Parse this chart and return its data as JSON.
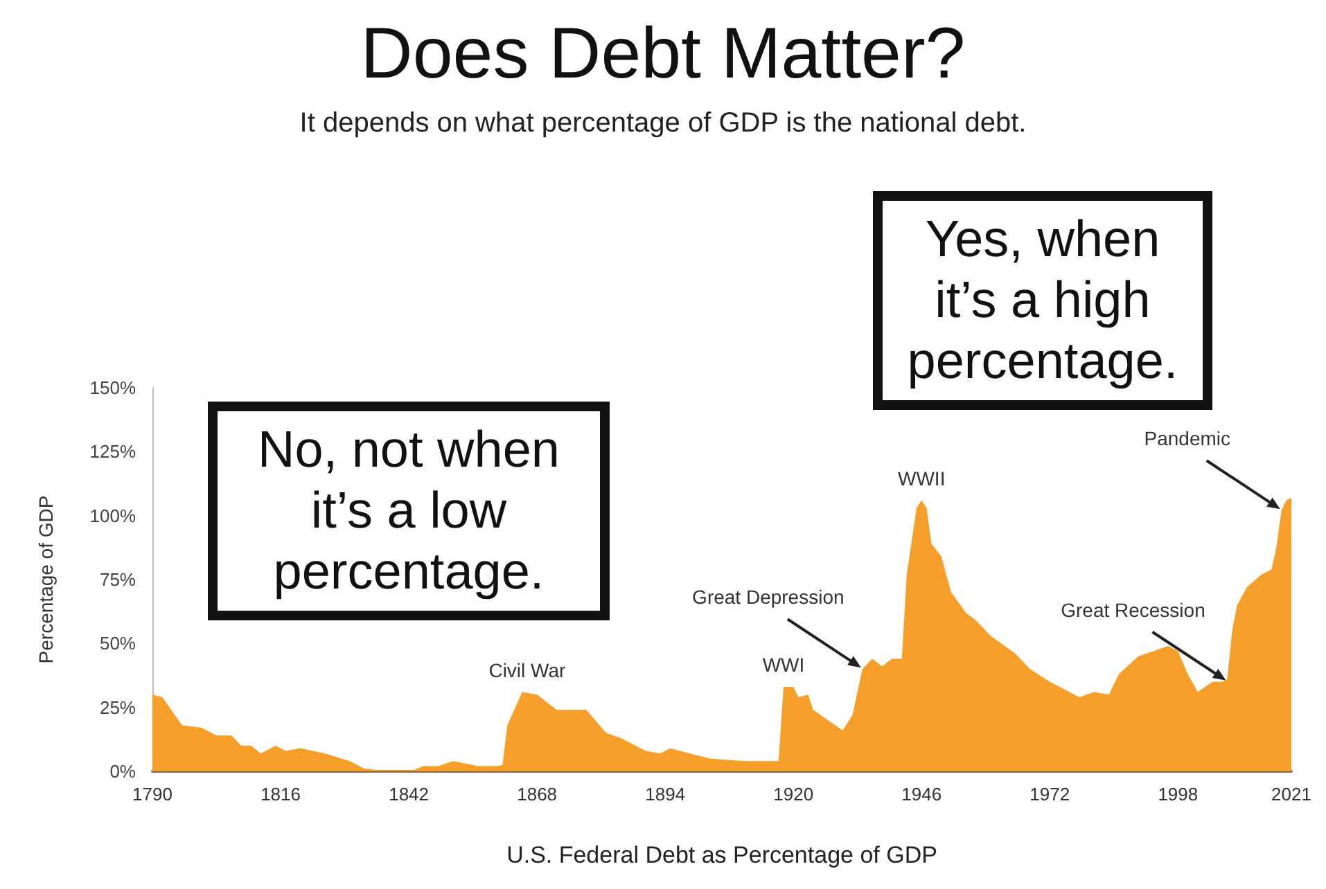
{
  "chart_data": {
    "type": "area",
    "title": "Does Debt Matter?",
    "subtitle": "It depends on what percentage of GDP is the national debt.",
    "xlabel": "U.S. Federal Debt as Percentage of GDP",
    "ylabel": "Percentage of GDP",
    "x": [
      1790,
      1792,
      1796,
      1800,
      1803,
      1806,
      1808,
      1810,
      1812,
      1815,
      1817,
      1820,
      1825,
      1830,
      1833,
      1836,
      1843,
      1845,
      1848,
      1851,
      1856,
      1860,
      1861,
      1862,
      1865,
      1868,
      1872,
      1878,
      1882,
      1885,
      1890,
      1893,
      1895,
      1899,
      1903,
      1910,
      1916,
      1917,
      1918,
      1920,
      1921,
      1923,
      1924,
      1930,
      1932,
      1934,
      1936,
      1938,
      1940,
      1942,
      1943,
      1945,
      1946,
      1947,
      1948,
      1950,
      1952,
      1955,
      1957,
      1960,
      1965,
      1968,
      1972,
      1975,
      1978,
      1981,
      1984,
      1986,
      1990,
      1993,
      1996,
      1998,
      2000,
      2002,
      2005,
      2007,
      2008,
      2009,
      2010,
      2012,
      2015,
      2016,
      2017,
      2018,
      2019,
      2020,
      2021
    ],
    "series": [
      {
        "color": "#f59e2a",
        "values": [
          30,
          29,
          18,
          17,
          14,
          14,
          10,
          10,
          7,
          10,
          8,
          9,
          7,
          4,
          1,
          0.5,
          0.5,
          2,
          2,
          4,
          2,
          2,
          2.5,
          18,
          31,
          30,
          24,
          24,
          15,
          13,
          8,
          7,
          9,
          7,
          5,
          4,
          4,
          4,
          33,
          33,
          29,
          30,
          24,
          16,
          22,
          40,
          44,
          41,
          44,
          44,
          77,
          103,
          106,
          103,
          89,
          84,
          70,
          62,
          59,
          53,
          46,
          40,
          35,
          32,
          29,
          31,
          30,
          38,
          45,
          47,
          49,
          47,
          38,
          31,
          35,
          35,
          36,
          55,
          65,
          72,
          77,
          78,
          79,
          88,
          102,
          106,
          107
        ]
      }
    ],
    "xlim": [
      1790,
      2021
    ],
    "xticks": [
      1790,
      1816,
      1842,
      1868,
      1894,
      1920,
      1946,
      1972,
      1998,
      2021
    ],
    "ylim": [
      0,
      150
    ],
    "yticks": [
      {
        "value": 0,
        "label": "0%"
      },
      {
        "value": 25,
        "label": "25%"
      },
      {
        "value": 50,
        "label": "50%"
      },
      {
        "value": 75,
        "label": "75%"
      },
      {
        "value": 100,
        "label": "100%"
      },
      {
        "value": 125,
        "label": "125%"
      },
      {
        "value": 150,
        "label": "150%"
      }
    ],
    "annotations": [
      "No, not when it’s a low percentage.",
      "Yes, when it’s a high percentage.",
      {
        "text": "Civil War",
        "x": 1866,
        "y": 31
      },
      {
        "text": "WWI",
        "x": 1918,
        "y": 33
      },
      {
        "text": "Great Depression",
        "x": 1934,
        "y": 40
      },
      {
        "text": "WWII",
        "x": 1946,
        "y": 106
      },
      {
        "text": "Great Recession",
        "x": 2008,
        "y": 35
      },
      {
        "text": "Pandemic",
        "x": 2019,
        "y": 102
      }
    ]
  }
}
